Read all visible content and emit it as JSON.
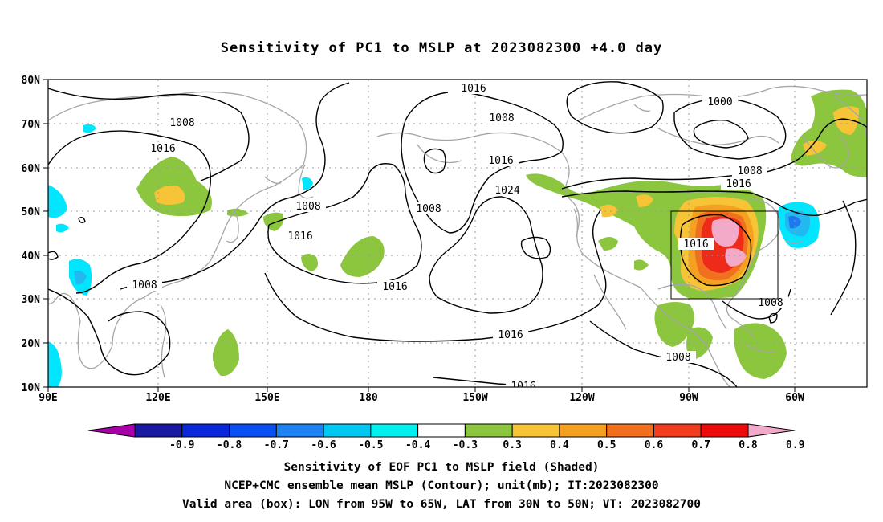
{
  "title": "Sensitivity of PC1 to MSLP at 2023082300 +4.0 day",
  "map": {
    "lon_labels": [
      "90E",
      "120E",
      "150E",
      "180",
      "150W",
      "120W",
      "90W",
      "60W"
    ],
    "lat_labels": [
      "80N",
      "70N",
      "60N",
      "50N",
      "40N",
      "30N",
      "20N",
      "10N"
    ],
    "contour_labels": [
      "1016",
      "1008",
      "1016",
      "1008",
      "1016",
      "1024",
      "1000",
      "1008",
      "1016",
      "1008",
      "1016",
      "1008",
      "1016",
      "1016",
      "1016",
      "1008",
      "1008",
      "1016",
      "1008"
    ],
    "colors": {
      "contour": "#000000",
      "coast": "#a6a6a6",
      "grid": "#9a9a9a",
      "green": "#8cc63f",
      "gold": "#f7c337",
      "orange": "#f4a020",
      "red": "#ee2a1b",
      "pink": "#f3a9c8",
      "cyan": "#00e6ff",
      "lightblue": "#23b8f0",
      "blue": "#1f78f0"
    }
  },
  "colorbar": {
    "labels": [
      "-0.9",
      "-0.8",
      "-0.7",
      "-0.6",
      "-0.5",
      "-0.4",
      "-0.3",
      "0.3",
      "0.4",
      "0.5",
      "0.6",
      "0.7",
      "0.8",
      "0.9"
    ],
    "colors": [
      "#aa00aa",
      "#1a1aa0",
      "#0a28d8",
      "#0a50f0",
      "#1e82f0",
      "#00c8f0",
      "#00f0f0",
      "#ffffff",
      "#8cc63f",
      "#f7c337",
      "#f4a020",
      "#f07020",
      "#f03d1e",
      "#ec0a0a",
      "#f3a9c8"
    ]
  },
  "captions": [
    "Sensitivity of EOF PC1 to MSLP field (Shaded)",
    "NCEP+CMC ensemble mean MSLP (Contour); unit(mb); IT:2023082300",
    "Valid area (box): LON from 95W to 65W, LAT from 30N to 50N; VT: 2023082700"
  ]
}
